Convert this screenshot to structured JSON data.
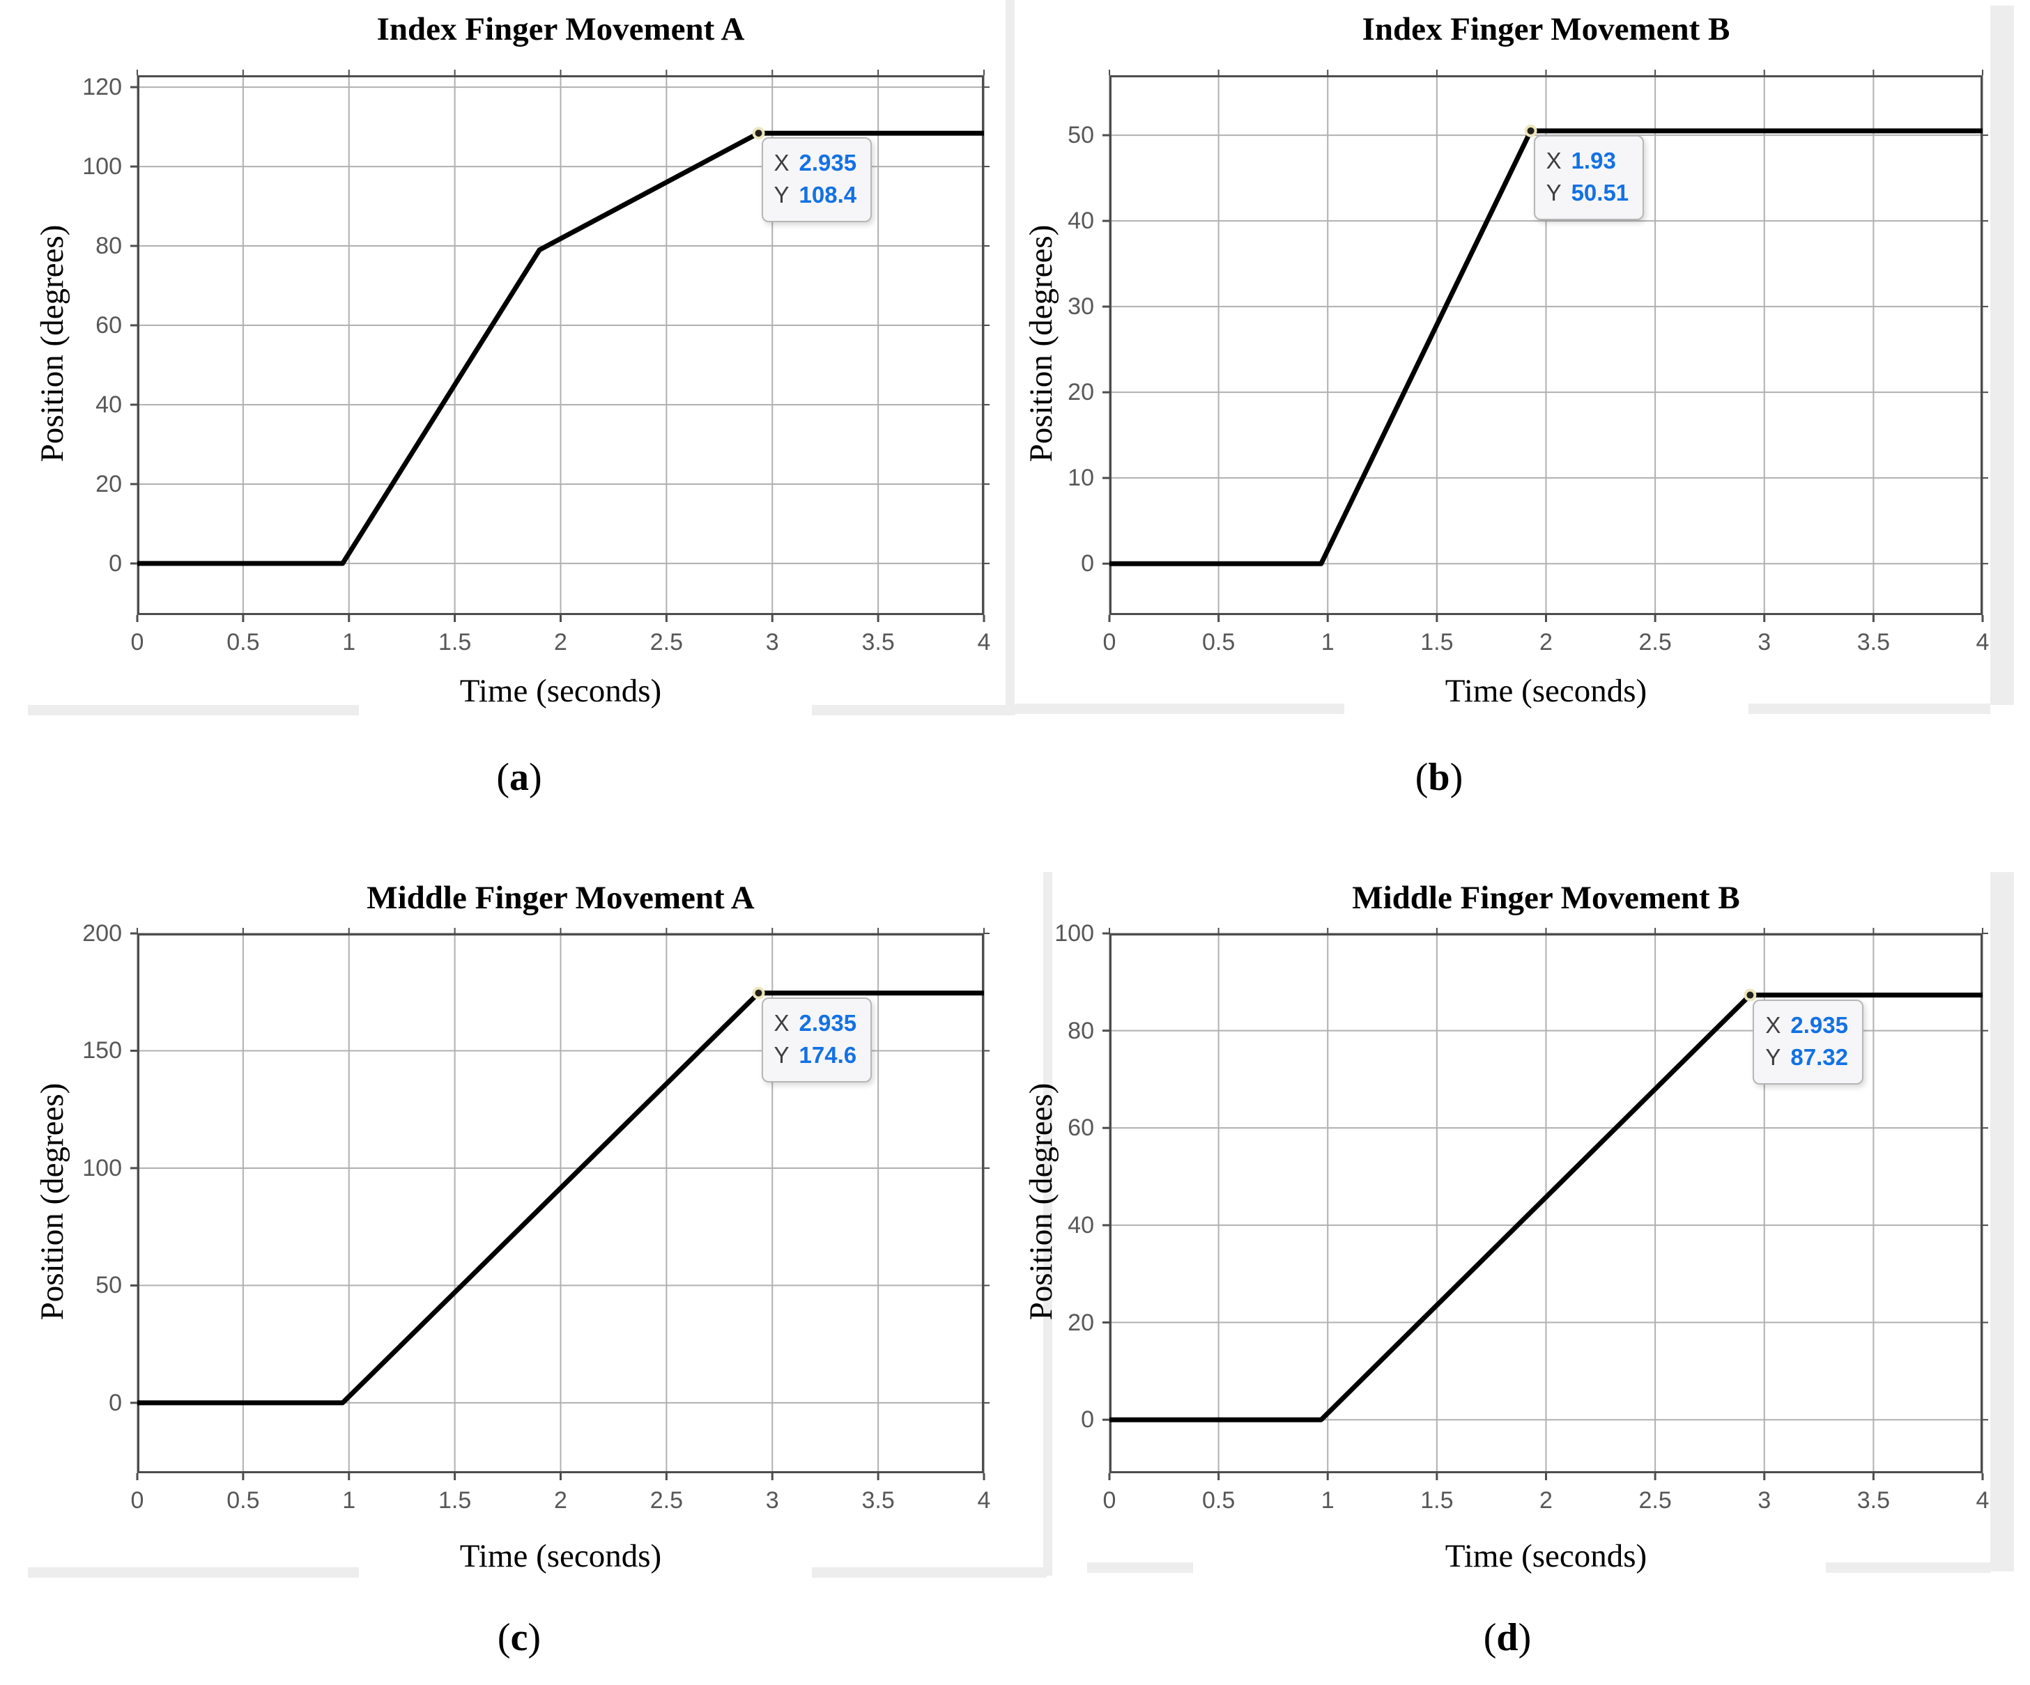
{
  "colors": {
    "curve": "#000000",
    "grid": "#b0b0b0",
    "box": "#4d4d4d",
    "tick_text": "#575757",
    "tip_value": "#1371e4",
    "tip_key": "#3d3d3d",
    "tip_bg": "#f6f6f9",
    "tip_border": "#b6b6b6",
    "band": "#ededed",
    "marker_fill": "#22201a",
    "marker_ring": "#ece5bd"
  },
  "chart_data": [
    {
      "id": "a",
      "type": "line",
      "title": "Index Finger Movement A",
      "xlabel": "Time (seconds)",
      "ylabel": "Position (degrees)",
      "caption": {
        "open": "(",
        "letter": "a",
        "close": ")"
      },
      "xlim": [
        0,
        4
      ],
      "ylim": [
        -13,
        123
      ],
      "xticks": [
        0,
        0.5,
        1,
        1.5,
        2,
        2.5,
        3,
        3.5,
        4
      ],
      "xtick_labels": [
        "0",
        "0.5",
        "1",
        "1.5",
        "2",
        "2.5",
        "3",
        "3.5",
        "4"
      ],
      "yticks": [
        0,
        20,
        40,
        60,
        80,
        100,
        120
      ],
      "ytick_labels": [
        "0",
        "20",
        "40",
        "60",
        "80",
        "100",
        "120"
      ],
      "grid": true,
      "x": [
        0,
        0.97,
        1.9,
        2.935,
        4
      ],
      "y": [
        0,
        0,
        79,
        108.4,
        108.4
      ],
      "datatip": {
        "x_key": "X",
        "x_val": "2.935",
        "y_key": "Y",
        "y_val": "108.4",
        "anchor_x": 2.935,
        "anchor_y": 108.4
      }
    },
    {
      "id": "b",
      "type": "line",
      "title": "Index Finger Movement B",
      "xlabel": "Time (seconds)",
      "ylabel": "Position (degrees)",
      "caption": {
        "open": "(",
        "letter": "b",
        "close": ")"
      },
      "xlim": [
        0,
        4
      ],
      "ylim": [
        -6,
        57
      ],
      "xticks": [
        0,
        0.5,
        1,
        1.5,
        2,
        2.5,
        3,
        3.5,
        4
      ],
      "xtick_labels": [
        "0",
        "0.5",
        "1",
        "1.5",
        "2",
        "2.5",
        "3",
        "3.5",
        "4"
      ],
      "yticks": [
        0,
        10,
        20,
        30,
        40,
        50
      ],
      "ytick_labels": [
        "0",
        "10",
        "20",
        "30",
        "40",
        "50"
      ],
      "grid": true,
      "x": [
        0,
        0.97,
        1.93,
        4
      ],
      "y": [
        0,
        0,
        50.51,
        50.51
      ],
      "datatip": {
        "x_key": "X",
        "x_val": "1.93",
        "y_key": "Y",
        "y_val": "50.51",
        "anchor_x": 1.93,
        "anchor_y": 50.51
      }
    },
    {
      "id": "c",
      "type": "line",
      "title": "Middle Finger Movement A",
      "xlabel": "Time (seconds)",
      "ylabel": "Position (degrees)",
      "caption": {
        "open": "(",
        "letter": "c",
        "close": ")"
      },
      "xlim": [
        0,
        4
      ],
      "ylim": [
        -30,
        200
      ],
      "xticks": [
        0,
        0.5,
        1,
        1.5,
        2,
        2.5,
        3,
        3.5,
        4
      ],
      "xtick_labels": [
        "0",
        "0.5",
        "1",
        "1.5",
        "2",
        "2.5",
        "3",
        "3.5",
        "4"
      ],
      "yticks": [
        0,
        50,
        100,
        150,
        200
      ],
      "ytick_labels": [
        "0",
        "50",
        "100",
        "150",
        "200"
      ],
      "grid": true,
      "x": [
        0,
        0.97,
        2.935,
        4
      ],
      "y": [
        0,
        0,
        174.6,
        174.6
      ],
      "datatip": {
        "x_key": "X",
        "x_val": "2.935",
        "y_key": "Y",
        "y_val": "174.6",
        "anchor_x": 2.935,
        "anchor_y": 174.6
      }
    },
    {
      "id": "d",
      "type": "line",
      "title": "Middle Finger Movement B",
      "xlabel": "Time (seconds)",
      "ylabel": "Position (degrees)",
      "caption": {
        "open": "(",
        "letter": "d",
        "close": ")"
      },
      "xlim": [
        0,
        4
      ],
      "ylim": [
        -11,
        100
      ],
      "xticks": [
        0,
        0.5,
        1,
        1.5,
        2,
        2.5,
        3,
        3.5,
        4
      ],
      "xtick_labels": [
        "0",
        "0.5",
        "1",
        "1.5",
        "2",
        "2.5",
        "3",
        "3.5",
        "4"
      ],
      "yticks": [
        0,
        20,
        40,
        60,
        80,
        100
      ],
      "ytick_labels": [
        "0",
        "20",
        "40",
        "60",
        "80",
        "100"
      ],
      "grid": true,
      "x": [
        0,
        0.97,
        2.935,
        4
      ],
      "y": [
        0,
        0,
        87.32,
        87.32
      ],
      "datatip": {
        "x_key": "X",
        "x_val": "2.935",
        "y_key": "Y",
        "y_val": "87.32",
        "anchor_x": 2.935,
        "anchor_y": 87.32
      }
    }
  ]
}
